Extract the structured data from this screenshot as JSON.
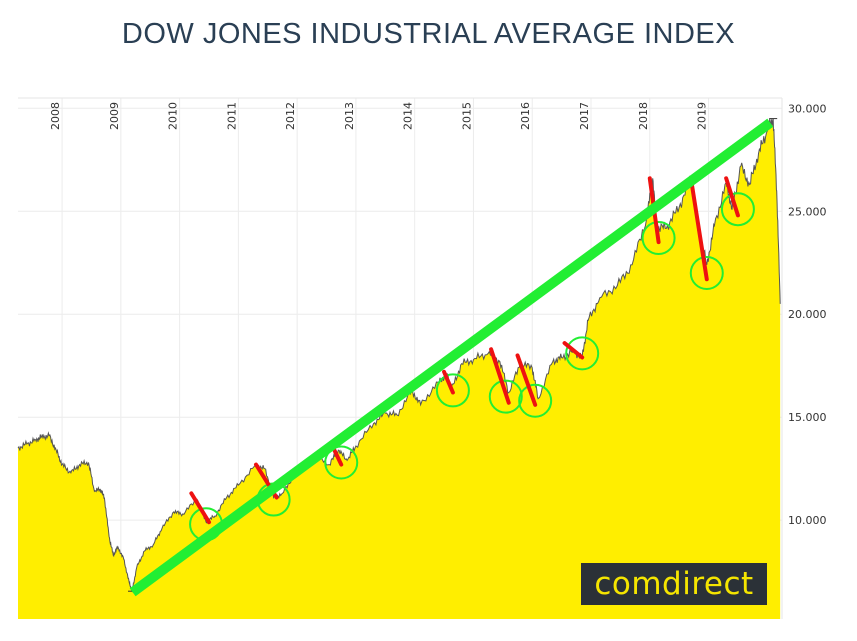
{
  "chart_data": {
    "type": "area",
    "title": "DOW JONES INDUSTRIAL AVERAGE INDEX",
    "xlabel": "",
    "ylabel": "",
    "x_ticks": [
      "2008",
      "2009",
      "2010",
      "2011",
      "2012",
      "2013",
      "2014",
      "2015",
      "2016",
      "2017",
      "2018",
      "2019"
    ],
    "y_ticks": [
      "10.000",
      "15.000",
      "20.000",
      "25.000",
      "30.000"
    ],
    "y_tick_values": [
      10000,
      15000,
      20000,
      25000,
      30000
    ],
    "ylim": [
      5200,
      30500
    ],
    "xlim": [
      2007.25,
      2020.25
    ],
    "grid": true,
    "y_axis_side": "right",
    "x_axis_side": "top",
    "fill_color": "#ffee00",
    "line_color": "#555555",
    "series": [
      {
        "values": [
          [
            2007.25,
            13500
          ],
          [
            2007.4,
            13700
          ],
          [
            2007.55,
            13900
          ],
          [
            2007.65,
            14050
          ],
          [
            2007.78,
            14100
          ],
          [
            2007.9,
            13400
          ],
          [
            2008.0,
            12700
          ],
          [
            2008.15,
            12300
          ],
          [
            2008.3,
            12700
          ],
          [
            2008.45,
            12800
          ],
          [
            2008.55,
            11400
          ],
          [
            2008.65,
            11500
          ],
          [
            2008.72,
            11100
          ],
          [
            2008.8,
            9200
          ],
          [
            2008.87,
            8300
          ],
          [
            2008.95,
            8700
          ],
          [
            2009.05,
            8100
          ],
          [
            2009.14,
            7000
          ],
          [
            2009.19,
            6550
          ],
          [
            2009.27,
            7700
          ],
          [
            2009.4,
            8500
          ],
          [
            2009.55,
            8800
          ],
          [
            2009.7,
            9600
          ],
          [
            2009.9,
            10400
          ],
          [
            2010.05,
            10300
          ],
          [
            2010.3,
            11000
          ],
          [
            2010.45,
            9900
          ],
          [
            2010.6,
            10200
          ],
          [
            2010.8,
            11100
          ],
          [
            2011.0,
            11700
          ],
          [
            2011.3,
            12700
          ],
          [
            2011.45,
            12500
          ],
          [
            2011.6,
            11100
          ],
          [
            2011.75,
            11300
          ],
          [
            2011.95,
            12200
          ],
          [
            2012.3,
            13200
          ],
          [
            2012.55,
            12700
          ],
          [
            2012.7,
            13400
          ],
          [
            2012.85,
            12900
          ],
          [
            2013.0,
            13600
          ],
          [
            2013.3,
            14700
          ],
          [
            2013.5,
            15200
          ],
          [
            2013.7,
            15100
          ],
          [
            2013.95,
            16300
          ],
          [
            2014.1,
            15600
          ],
          [
            2014.4,
            16700
          ],
          [
            2014.55,
            17100
          ],
          [
            2014.62,
            16300
          ],
          [
            2014.8,
            17600
          ],
          [
            2015.0,
            17800
          ],
          [
            2015.25,
            18100
          ],
          [
            2015.45,
            17700
          ],
          [
            2015.6,
            16200
          ],
          [
            2015.8,
            17600
          ],
          [
            2016.0,
            17400
          ],
          [
            2016.1,
            15900
          ],
          [
            2016.35,
            17700
          ],
          [
            2016.5,
            17900
          ],
          [
            2016.7,
            18200
          ],
          [
            2016.85,
            17900
          ],
          [
            2016.95,
            19700
          ],
          [
            2017.15,
            20800
          ],
          [
            2017.45,
            21400
          ],
          [
            2017.7,
            22400
          ],
          [
            2017.95,
            24700
          ],
          [
            2018.05,
            26600
          ],
          [
            2018.12,
            24100
          ],
          [
            2018.3,
            24300
          ],
          [
            2018.5,
            25200
          ],
          [
            2018.7,
            26600
          ],
          [
            2018.8,
            24500
          ],
          [
            2018.97,
            22400
          ],
          [
            2019.1,
            24300
          ],
          [
            2019.3,
            26400
          ],
          [
            2019.4,
            25100
          ],
          [
            2019.55,
            27200
          ],
          [
            2019.7,
            26300
          ],
          [
            2019.85,
            27800
          ],
          [
            2020.0,
            28900
          ],
          [
            2020.1,
            29500
          ],
          [
            2020.16,
            26000
          ],
          [
            2020.22,
            20500
          ]
        ]
      }
    ],
    "annotations": {
      "trend_line": {
        "color": "#22ee33",
        "from": [
          2009.2,
          6500
        ],
        "to": [
          2020.05,
          29300
        ]
      },
      "drops": {
        "color": "#ee1111",
        "segments": [
          [
            [
              2010.2,
              11300
            ],
            [
              2010.5,
              9900
            ]
          ],
          [
            [
              2011.3,
              12700
            ],
            [
              2011.65,
              11100
            ]
          ],
          [
            [
              2012.6,
              13600
            ],
            [
              2012.75,
              12700
            ]
          ],
          [
            [
              2014.5,
              17200
            ],
            [
              2014.65,
              16200
            ]
          ],
          [
            [
              2015.3,
              18300
            ],
            [
              2015.6,
              15700
            ]
          ],
          [
            [
              2015.75,
              18000
            ],
            [
              2016.05,
              15600
            ]
          ],
          [
            [
              2016.55,
              18600
            ],
            [
              2016.85,
              17900
            ]
          ],
          [
            [
              2018.0,
              26600
            ],
            [
              2018.15,
              23500
            ]
          ],
          [
            [
              2018.7,
              26600
            ],
            [
              2018.97,
              21700
            ]
          ],
          [
            [
              2019.3,
              26600
            ],
            [
              2019.5,
              24800
            ]
          ]
        ]
      },
      "circles": {
        "color": "#22ee33",
        "points": [
          [
            2010.45,
            9800
          ],
          [
            2011.6,
            11000
          ],
          [
            2012.75,
            12800
          ],
          [
            2014.65,
            16300
          ],
          [
            2015.55,
            16000
          ],
          [
            2016.05,
            15800
          ],
          [
            2016.85,
            18100
          ],
          [
            2018.15,
            23700
          ],
          [
            2018.97,
            22000
          ],
          [
            2019.5,
            25100
          ]
        ]
      }
    }
  },
  "badge": {
    "text": "comdirect"
  }
}
